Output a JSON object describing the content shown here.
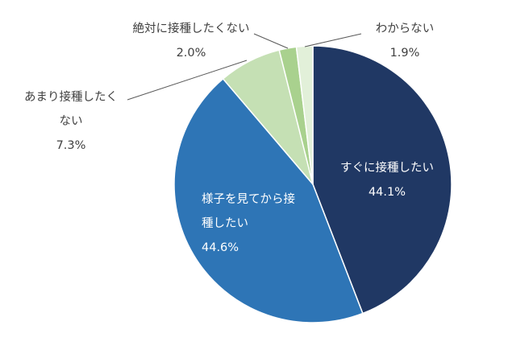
{
  "chart_data": {
    "type": "pie",
    "start_angle_deg": 0,
    "direction": "clockwise",
    "slices": [
      {
        "label_lines": [
          "すぐに接種したい"
        ],
        "value": 44.1,
        "value_text": "44.1%",
        "color": "#203864",
        "label_style": "inside"
      },
      {
        "label_lines": [
          "様子を見てから接",
          "種したい"
        ],
        "value": 44.6,
        "value_text": "44.6%",
        "color": "#2e75b6",
        "label_style": "inside"
      },
      {
        "label_lines": [
          "あまり接種したく",
          "ない"
        ],
        "value": 7.3,
        "value_text": "7.3%",
        "color": "#c5e0b4",
        "label_style": "outside"
      },
      {
        "label_lines": [
          "絶対に接種したくない"
        ],
        "value": 2.0,
        "value_text": "2.0%",
        "color": "#a9d18e",
        "label_style": "outside"
      },
      {
        "label_lines": [
          "わからない"
        ],
        "value": 1.9,
        "value_text": "1.9%",
        "color": "#e2f0d9",
        "label_style": "outside"
      }
    ],
    "legend": "none"
  }
}
